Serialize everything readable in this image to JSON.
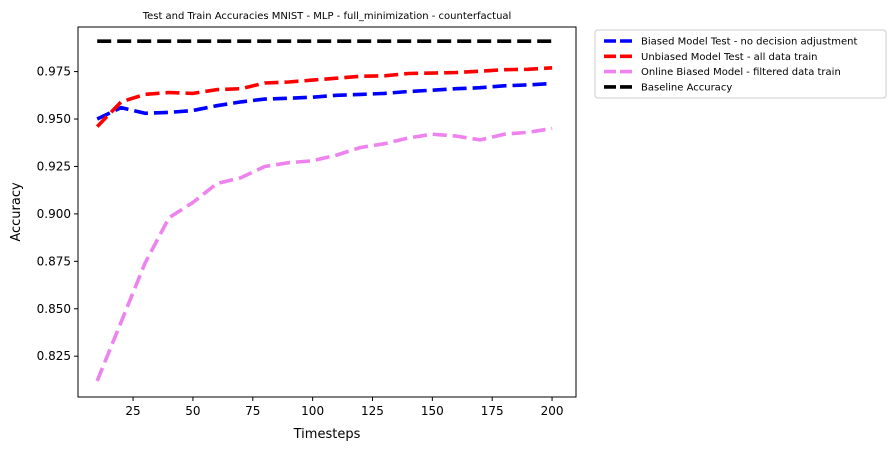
{
  "chart_data": {
    "type": "line",
    "title": "Test and Train Accuracies MNIST - MLP - full_minimization - counterfactual",
    "xlabel": "Timesteps",
    "ylabel": "Accuracy",
    "xlim": [
      2,
      210
    ],
    "ylim": [
      0.8035,
      0.9985
    ],
    "x_ticks": [
      25,
      50,
      75,
      100,
      125,
      150,
      175,
      200
    ],
    "y_ticks": [
      0.825,
      0.85,
      0.875,
      0.9,
      0.925,
      0.95,
      0.975
    ],
    "y_tick_labels": [
      "0.825",
      "0.850",
      "0.875",
      "0.900",
      "0.925",
      "0.950",
      "0.975"
    ],
    "legend_position": "outside-top-right",
    "x": [
      10,
      20,
      30,
      40,
      50,
      60,
      70,
      80,
      90,
      100,
      110,
      120,
      130,
      140,
      150,
      160,
      170,
      180,
      190,
      200
    ],
    "series": [
      {
        "name": "Biased Model Test - no decision adjustment",
        "color": "#0000ff",
        "values": [
          0.95,
          0.956,
          0.953,
          0.9535,
          0.9545,
          0.957,
          0.959,
          0.9605,
          0.961,
          0.9615,
          0.9625,
          0.963,
          0.9635,
          0.9645,
          0.9652,
          0.966,
          0.9665,
          0.9675,
          0.968,
          0.9687
        ]
      },
      {
        "name": "Unbiased Model Test - all data train",
        "color": "#ff0000",
        "values": [
          0.946,
          0.959,
          0.963,
          0.964,
          0.9635,
          0.9655,
          0.966,
          0.969,
          0.9695,
          0.9705,
          0.9715,
          0.9725,
          0.9728,
          0.974,
          0.9742,
          0.9745,
          0.9752,
          0.976,
          0.9762,
          0.977
        ]
      },
      {
        "name": "Online Biased Model - filtered data train",
        "color": "#ee82ee",
        "values": [
          0.812,
          0.843,
          0.874,
          0.898,
          0.906,
          0.916,
          0.919,
          0.925,
          0.927,
          0.928,
          0.931,
          0.935,
          0.937,
          0.94,
          0.942,
          0.941,
          0.939,
          0.942,
          0.943,
          0.945
        ]
      },
      {
        "name": "Baseline Accuracy",
        "color": "#000000",
        "values": [
          0.991,
          0.991,
          0.991,
          0.991,
          0.991,
          0.991,
          0.991,
          0.991,
          0.991,
          0.991,
          0.991,
          0.991,
          0.991,
          0.991,
          0.991,
          0.991,
          0.991,
          0.991,
          0.991,
          0.991
        ]
      }
    ]
  }
}
